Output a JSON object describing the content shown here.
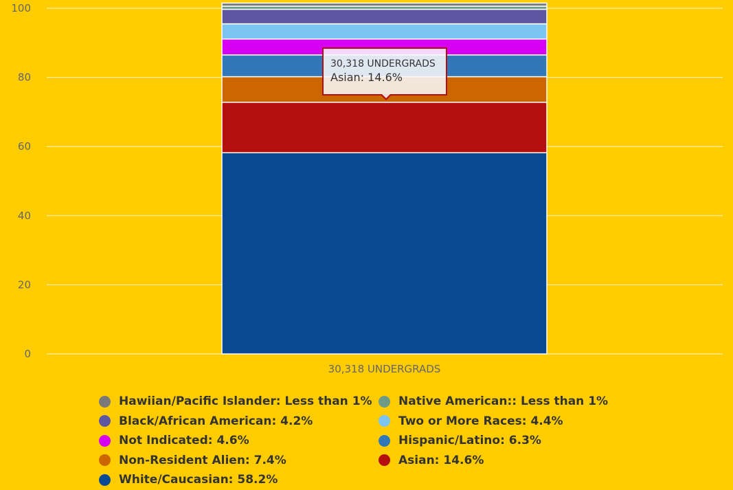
{
  "chart_data": {
    "type": "bar",
    "stacked": true,
    "categories": [
      "30,318 UNDERGRADS"
    ],
    "ylim": [
      0,
      100
    ],
    "yticks": [
      "0",
      "20",
      "40",
      "60",
      "80",
      "100"
    ],
    "grid": true,
    "legend_position": "bottom",
    "series": [
      {
        "name": "White/Caucasian",
        "value": 58.2,
        "color": "#094A93",
        "legend": "White/Caucasian: 58.2%"
      },
      {
        "name": "Asian",
        "value": 14.6,
        "color": "#B30F0F",
        "legend": "Asian: 14.6%"
      },
      {
        "name": "Non-Resident Alien",
        "value": 7.4,
        "color": "#CC6600",
        "legend": "Non-Resident Alien: 7.4%"
      },
      {
        "name": "Hispanic/Latino",
        "value": 6.3,
        "color": "#3178B8",
        "legend": "Hispanic/Latino: 6.3%"
      },
      {
        "name": "Not Indicated",
        "value": 4.6,
        "color": "#D600F5",
        "legend": "Not Indicated: 4.6%"
      },
      {
        "name": "Two or More Races",
        "value": 4.4,
        "color": "#7CC4F2",
        "legend": "Two or More Races: 4.4%"
      },
      {
        "name": "Black/African American",
        "value": 4.2,
        "color": "#5E56A0",
        "legend": "Black/African American: 4.2%"
      },
      {
        "name": "Native American:",
        "value": 0.9,
        "color": "#6E9A88",
        "legend": "Native American:: Less than 1%"
      },
      {
        "name": "Hawiian/Pacific Islander",
        "value": 0.9,
        "color": "#7A7A7A",
        "legend": "Hawiian/Pacific Islander: Less than 1%"
      }
    ],
    "tooltip": {
      "title": "30,318 UNDERGRADS",
      "body": "Asian: 14.6%"
    }
  }
}
